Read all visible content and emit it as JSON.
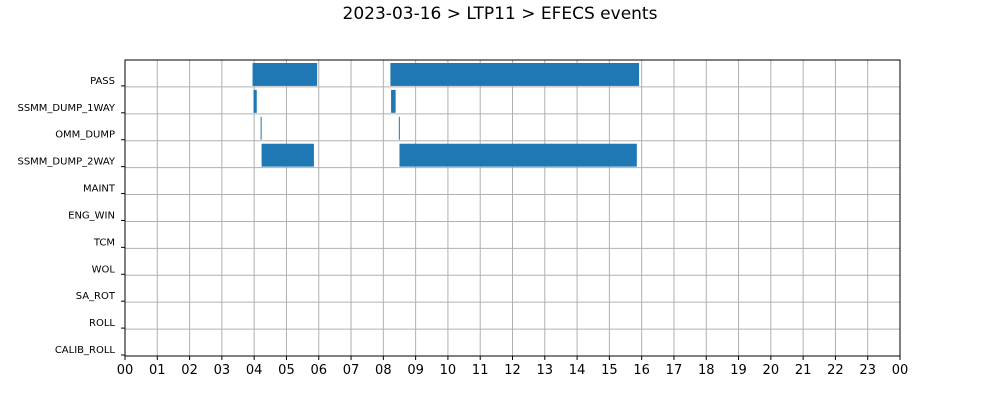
{
  "title": "2023-03-16 > LTP11 > EFECS events",
  "chart_data": {
    "type": "bar",
    "orientation": "horizontal",
    "title": "2023-03-16 > LTP11 > EFECS events",
    "xlabel": "",
    "ylabel": "",
    "xlim": [
      0,
      24
    ],
    "grid": true,
    "bar_color": "#1f77b4",
    "x_ticks": [
      "00",
      "01",
      "02",
      "03",
      "04",
      "05",
      "06",
      "07",
      "08",
      "09",
      "10",
      "11",
      "12",
      "13",
      "14",
      "15",
      "16",
      "17",
      "18",
      "19",
      "20",
      "21",
      "22",
      "23",
      "00"
    ],
    "categories": [
      "PASS",
      "SSMM_DUMP_1WAY",
      "OMM_DUMP",
      "SSMM_DUMP_2WAY",
      "MAINT",
      "ENG_WIN",
      "TCM",
      "WOL",
      "SA_ROT",
      "ROLL",
      "CALIB_ROLL"
    ],
    "events": [
      {
        "category": "PASS",
        "start": 3.95,
        "end": 5.95
      },
      {
        "category": "PASS",
        "start": 8.22,
        "end": 15.92
      },
      {
        "category": "SSMM_DUMP_1WAY",
        "start": 3.98,
        "end": 4.08
      },
      {
        "category": "SSMM_DUMP_1WAY",
        "start": 8.24,
        "end": 8.38
      },
      {
        "category": "OMM_DUMP",
        "start": 4.2,
        "end": 4.23
      },
      {
        "category": "OMM_DUMP",
        "start": 8.48,
        "end": 8.51
      },
      {
        "category": "SSMM_DUMP_2WAY",
        "start": 4.23,
        "end": 5.85
      },
      {
        "category": "SSMM_DUMP_2WAY",
        "start": 8.5,
        "end": 15.85
      }
    ]
  }
}
